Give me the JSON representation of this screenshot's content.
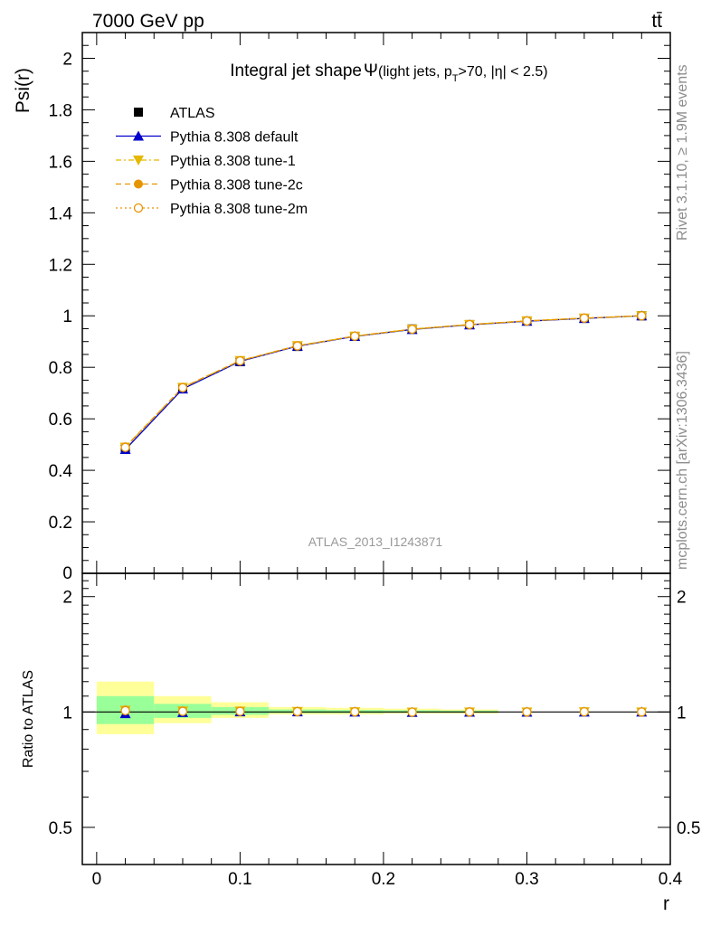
{
  "header": {
    "energy_label": "7000 GeV pp",
    "process_label": "tt̄"
  },
  "side_labels": {
    "rivet": "Rivet 3.1.10, ≥ 1.9M events",
    "mcplots": "mcplots.cern.ch [arXiv:1306.3436]"
  },
  "chart_data": [
    {
      "type": "line",
      "title": "Integral jet shape",
      "title_symbol": "Ψ",
      "subtitle_parts": [
        "(light jets, p",
        "T",
        ">70, |η| < 2.5)"
      ],
      "ylabel": "Psi(r)",
      "watermark": "ATLAS_2013_I1243871",
      "xlim": [
        -0.01,
        0.4
      ],
      "ylim": [
        0,
        2.1
      ],
      "yticks": [
        0.2,
        0.4,
        0.6,
        0.8,
        1,
        1.2,
        1.4,
        1.6,
        1.8,
        2
      ],
      "ytick_labels": [
        "0.2",
        "0.4",
        "0.6",
        "0.8",
        "1",
        "1.2",
        "1.4",
        "1.6",
        "1.8",
        "2"
      ],
      "bottom_tick_label": "0",
      "x": [
        0.02,
        0.06,
        0.1,
        0.14,
        0.18,
        0.22,
        0.26,
        0.3,
        0.34,
        0.38
      ],
      "series": [
        {
          "name": "ATLAS",
          "color": "#000000",
          "marker": "square",
          "values": [
            0.485,
            0.718,
            0.822,
            0.881,
            0.92,
            0.949,
            0.966,
            0.98,
            0.99,
            1.0
          ]
        },
        {
          "name": "Pythia 8.308 default",
          "color": "#0000cc",
          "marker": "triangle-up",
          "line": "solid",
          "values": [
            0.481,
            0.716,
            0.823,
            0.882,
            0.92,
            0.947,
            0.965,
            0.979,
            0.99,
            1.0
          ]
        },
        {
          "name": "Pythia 8.308 tune-1",
          "color": "#e6b800",
          "marker": "triangle-down",
          "line": "dashdot",
          "values": [
            0.49,
            0.722,
            0.826,
            0.884,
            0.921,
            0.948,
            0.966,
            0.98,
            0.991,
            1.0
          ]
        },
        {
          "name": "Pythia 8.308 tune-2c",
          "color": "#e69500",
          "marker": "circle",
          "line": "dashed",
          "values": [
            0.491,
            0.722,
            0.826,
            0.884,
            0.921,
            0.948,
            0.966,
            0.98,
            0.991,
            1.0
          ]
        },
        {
          "name": "Pythia 8.308 tune-2m",
          "color": "#e69500",
          "marker": "circle-open",
          "line": "dotted",
          "values": [
            0.489,
            0.721,
            0.825,
            0.883,
            0.921,
            0.948,
            0.966,
            0.98,
            0.991,
            1.0
          ]
        }
      ]
    },
    {
      "type": "line",
      "ylabel": "Ratio to ATLAS",
      "xlabel": "r",
      "xlim": [
        -0.01,
        0.4
      ],
      "ylim": [
        0.4,
        2.3
      ],
      "log_y": true,
      "yticks": [
        0.5,
        1,
        2
      ],
      "ytick_labels": [
        "0.5",
        "1",
        "2"
      ],
      "xticks": [
        0,
        0.1,
        0.2,
        0.3,
        0.4
      ],
      "xtick_labels": [
        "0",
        "0.1",
        "0.2",
        "0.3",
        "0.4"
      ],
      "x": [
        0.02,
        0.06,
        0.1,
        0.14,
        0.18,
        0.22,
        0.26,
        0.3,
        0.34,
        0.38
      ],
      "bin_edges": [
        0,
        0.04,
        0.08,
        0.12,
        0.16,
        0.2,
        0.24,
        0.28,
        0.32,
        0.36,
        0.4
      ],
      "uncertainty_bands": {
        "yellow_low": [
          0.875,
          0.935,
          0.965,
          0.985,
          0.985,
          0.99,
          0.99,
          1.0,
          1.0,
          1.0
        ],
        "yellow_high": [
          1.2,
          1.1,
          1.06,
          1.03,
          1.025,
          1.02,
          1.015,
          1.0,
          1.0,
          1.0
        ],
        "green_low": [
          0.93,
          0.965,
          0.983,
          0.993,
          0.993,
          0.995,
          0.995,
          1.0,
          1.0,
          1.0
        ],
        "green_high": [
          1.1,
          1.05,
          1.03,
          1.015,
          1.012,
          1.01,
          1.008,
          1.0,
          1.0,
          1.0
        ]
      },
      "series": [
        {
          "name": "Pythia 8.308 default",
          "color": "#0000cc",
          "marker": "triangle-up",
          "values": [
            0.99,
            0.997,
            1.001,
            1.001,
            1.0,
            0.998,
            0.999,
            0.999,
            1.0,
            1.0
          ]
        },
        {
          "name": "Pythia 8.308 tune-1",
          "color": "#e6b800",
          "marker": "triangle-down",
          "values": [
            1.01,
            1.006,
            1.005,
            1.003,
            1.001,
            0.999,
            1.0,
            1.0,
            1.001,
            1.0
          ]
        },
        {
          "name": "Pythia 8.308 tune-2c",
          "color": "#e69500",
          "marker": "circle",
          "values": [
            1.012,
            1.006,
            1.005,
            1.003,
            1.001,
            0.999,
            1.0,
            1.0,
            1.001,
            1.0
          ]
        },
        {
          "name": "Pythia 8.308 tune-2m",
          "color": "#e69500",
          "marker": "circle-open",
          "values": [
            1.008,
            1.004,
            1.004,
            1.002,
            1.001,
            0.999,
            1.0,
            1.0,
            1.001,
            1.0
          ]
        }
      ]
    }
  ]
}
